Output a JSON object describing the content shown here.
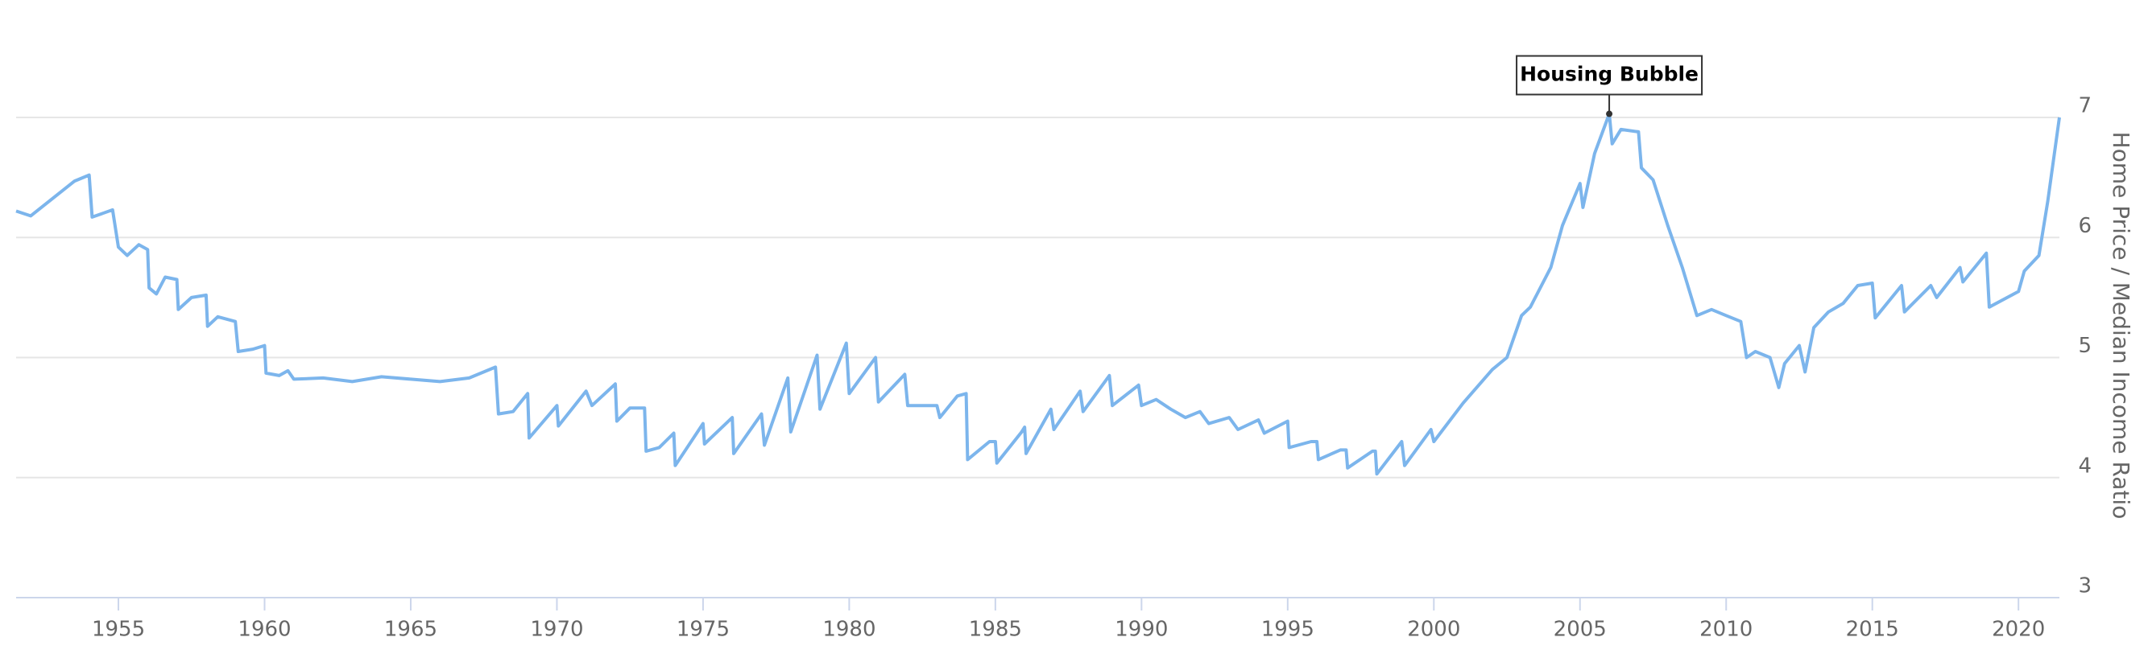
{
  "chart_data": {
    "type": "line",
    "y_axis_label": "Home Price / Median Income Ratio",
    "color": "#7cb5ec",
    "grid": true,
    "y_axis_side": "right",
    "xlim": [
      1951.5,
      2021.4
    ],
    "xticks": [
      1955,
      1960,
      1965,
      1970,
      1975,
      1980,
      1985,
      1990,
      1995,
      2000,
      2005,
      2010,
      2015,
      2020
    ],
    "ylim": [
      3,
      7
    ],
    "yticks": [
      3,
      4,
      5,
      6,
      7
    ],
    "annotations": [
      {
        "text": "Housing Bubble",
        "x": 2006,
        "y": 7.03
      }
    ],
    "x": [
      1951.5,
      1952,
      1953.5,
      1954,
      1954.1,
      1954.8,
      1955,
      1955.3,
      1955.7,
      1956,
      1956.05,
      1956.3,
      1956.6,
      1957,
      1957.05,
      1957.5,
      1958,
      1958.05,
      1958.4,
      1959,
      1959.1,
      1959.6,
      1960,
      1960.05,
      1960.5,
      1960.8,
      1961,
      1962,
      1963,
      1964,
      1965,
      1966,
      1967,
      1967.9,
      1968,
      1968.5,
      1969,
      1969.05,
      1970,
      1970.05,
      1971,
      1971.2,
      1972,
      1972.05,
      1972.5,
      1973,
      1973.05,
      1973.5,
      1974,
      1974.05,
      1975,
      1975.05,
      1976,
      1976.05,
      1977,
      1977.1,
      1977.9,
      1978,
      1978.9,
      1979,
      1979.9,
      1980,
      1980.9,
      1981,
      1981.9,
      1982,
      1983,
      1983.1,
      1983.7,
      1984,
      1984.05,
      1984.8,
      1985,
      1985.05,
      1985.9,
      1986,
      1986.05,
      1986.9,
      1987,
      1987.9,
      1988,
      1988.9,
      1989,
      1989.9,
      1990,
      1990.5,
      1991,
      1991.5,
      1992,
      1992.3,
      1993,
      1993.3,
      1994,
      1994.2,
      1995,
      1995.05,
      1995.8,
      1996,
      1996.05,
      1996.8,
      1997,
      1997.05,
      1997.9,
      1998,
      1998.05,
      1998.9,
      1999,
      1999.9,
      2000,
      2001,
      2002,
      2002.5,
      2003,
      2003.3,
      2004,
      2004.4,
      2005,
      2005.1,
      2005.5,
      2006,
      2006.1,
      2006.4,
      2007,
      2007.1,
      2007.5,
      2008,
      2008.5,
      2009,
      2009.5,
      2010,
      2010.5,
      2010.7,
      2011,
      2011.5,
      2011.8,
      2012,
      2012.5,
      2012.7,
      2013,
      2013.5,
      2014,
      2014.5,
      2015,
      2015.1,
      2016,
      2016.1,
      2017,
      2017.2,
      2018,
      2018.1,
      2018.9,
      2019,
      2020,
      2020.2,
      2020.7,
      2021,
      2021.4
    ],
    "values": [
      6.22,
      6.18,
      6.47,
      6.52,
      6.17,
      6.23,
      5.92,
      5.85,
      5.94,
      5.9,
      5.58,
      5.53,
      5.67,
      5.65,
      5.4,
      5.5,
      5.52,
      5.26,
      5.34,
      5.3,
      5.05,
      5.07,
      5.1,
      4.87,
      4.85,
      4.89,
      4.82,
      4.83,
      4.8,
      4.84,
      4.82,
      4.8,
      4.83,
      4.92,
      4.53,
      4.55,
      4.7,
      4.33,
      4.6,
      4.43,
      4.72,
      4.6,
      4.78,
      4.47,
      4.58,
      4.58,
      4.22,
      4.25,
      4.37,
      4.1,
      4.45,
      4.28,
      4.5,
      4.2,
      4.53,
      4.27,
      4.83,
      4.38,
      5.02,
      4.57,
      5.12,
      4.7,
      5.0,
      4.63,
      4.86,
      4.6,
      4.6,
      4.5,
      4.68,
      4.7,
      4.15,
      4.3,
      4.3,
      4.12,
      4.38,
      4.42,
      4.2,
      4.57,
      4.4,
      4.72,
      4.55,
      4.85,
      4.6,
      4.77,
      4.6,
      4.65,
      4.57,
      4.5,
      4.55,
      4.45,
      4.5,
      4.4,
      4.48,
      4.37,
      4.47,
      4.25,
      4.3,
      4.3,
      4.15,
      4.23,
      4.23,
      4.08,
      4.22,
      4.22,
      4.03,
      4.3,
      4.1,
      4.4,
      4.3,
      4.62,
      4.9,
      5.0,
      5.35,
      5.42,
      5.75,
      6.1,
      6.45,
      6.25,
      6.7,
      7.03,
      6.78,
      6.9,
      6.88,
      6.58,
      6.48,
      6.1,
      5.75,
      5.35,
      5.4,
      5.35,
      5.3,
      5.0,
      5.05,
      5.0,
      4.75,
      4.95,
      5.1,
      4.88,
      5.25,
      5.38,
      5.45,
      5.6,
      5.62,
      5.33,
      5.6,
      5.38,
      5.6,
      5.5,
      5.75,
      5.63,
      5.87,
      5.42,
      5.55,
      5.72,
      5.85,
      6.3,
      7.0
    ]
  }
}
